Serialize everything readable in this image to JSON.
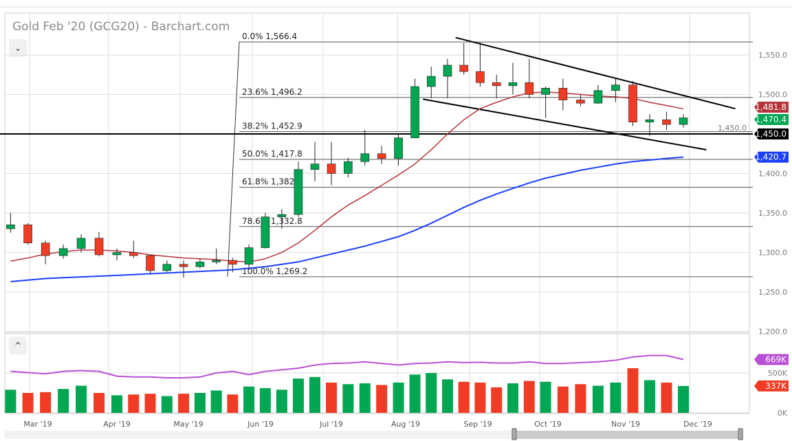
{
  "title": "Gold Feb '20 (GCG20) - Barchart.com",
  "controls": {
    "collapse_price": "⌄",
    "collapse_volume": "^"
  },
  "chart_data": [
    {
      "type": "candlestick",
      "interval": "weekly (approx.)",
      "yticks": [
        1550,
        1500,
        1450,
        1400,
        1350,
        1300,
        1250,
        1200
      ],
      "ytick_labels": [
        "1,550.0",
        "1,500.0",
        "1,450.0",
        "1,400.0",
        "1,350.0",
        "1,300.0",
        "1,250.0",
        "1,200.0"
      ],
      "ylim": [
        1200,
        1580
      ],
      "xtick_labels": [
        "Mar '19",
        "Apr '19",
        "May '19",
        "Jun '19",
        "Jul '19",
        "Aug '19",
        "Sep '19",
        "Oct '19",
        "Nov '19",
        "Dec '19"
      ],
      "xtick_dates": [
        "2019-03-01",
        "2019-04-01",
        "2019-05-01",
        "2019-06-01",
        "2019-07-01",
        "2019-08-01",
        "2019-09-01",
        "2019-10-01",
        "2019-11-01",
        "2019-12-01"
      ],
      "candles": [
        [
          "2019-02-18",
          1330,
          1350,
          1325,
          1335
        ],
        [
          "2019-02-25",
          1335,
          1337,
          1310,
          1312
        ],
        [
          "2019-03-04",
          1312,
          1315,
          1285,
          1296
        ],
        [
          "2019-03-11",
          1296,
          1310,
          1292,
          1305
        ],
        [
          "2019-03-18",
          1305,
          1323,
          1300,
          1318
        ],
        [
          "2019-03-25",
          1318,
          1326,
          1295,
          1297
        ],
        [
          "2019-04-01",
          1297,
          1305,
          1290,
          1300
        ],
        [
          "2019-04-08",
          1300,
          1315,
          1293,
          1296
        ],
        [
          "2019-04-15",
          1296,
          1297,
          1273,
          1277
        ],
        [
          "2019-04-22",
          1277,
          1290,
          1275,
          1285
        ],
        [
          "2019-04-29",
          1285,
          1290,
          1268,
          1282
        ],
        [
          "2019-05-06",
          1282,
          1292,
          1280,
          1288
        ],
        [
          "2019-05-13",
          1288,
          1305,
          1285,
          1290
        ],
        [
          "2019-05-20",
          1290,
          1293,
          1275,
          1285
        ],
        [
          "2019-05-27",
          1285,
          1310,
          1278,
          1306
        ],
        [
          "2019-06-03",
          1306,
          1350,
          1305,
          1345
        ],
        [
          "2019-06-10",
          1345,
          1355,
          1330,
          1348
        ],
        [
          "2019-06-17",
          1348,
          1415,
          1345,
          1405
        ],
        [
          "2019-06-24",
          1405,
          1440,
          1390,
          1412
        ],
        [
          "2019-07-01",
          1412,
          1440,
          1385,
          1400
        ],
        [
          "2019-07-08",
          1400,
          1420,
          1395,
          1415
        ],
        [
          "2019-07-15",
          1415,
          1455,
          1410,
          1425
        ],
        [
          "2019-07-22",
          1425,
          1435,
          1412,
          1419
        ],
        [
          "2019-07-29",
          1419,
          1450,
          1410,
          1445
        ],
        [
          "2019-08-05",
          1445,
          1520,
          1445,
          1510
        ],
        [
          "2019-08-12",
          1510,
          1535,
          1495,
          1523
        ],
        [
          "2019-08-19",
          1523,
          1545,
          1495,
          1537
        ],
        [
          "2019-08-26",
          1537,
          1565,
          1525,
          1529
        ],
        [
          "2019-09-02",
          1529,
          1566,
          1510,
          1515
        ],
        [
          "2019-09-09",
          1515,
          1525,
          1495,
          1511
        ],
        [
          "2019-09-16",
          1511,
          1540,
          1500,
          1515
        ],
        [
          "2019-09-23",
          1515,
          1545,
          1495,
          1500
        ],
        [
          "2019-09-30",
          1500,
          1510,
          1470,
          1508
        ],
        [
          "2019-10-07",
          1508,
          1520,
          1480,
          1493
        ],
        [
          "2019-10-14",
          1493,
          1500,
          1485,
          1489
        ],
        [
          "2019-10-21",
          1489,
          1512,
          1488,
          1505
        ],
        [
          "2019-10-28",
          1505,
          1520,
          1490,
          1512
        ],
        [
          "2019-11-04",
          1512,
          1517,
          1460,
          1465
        ],
        [
          "2019-11-11",
          1465,
          1475,
          1447,
          1468
        ],
        [
          "2019-11-18",
          1468,
          1478,
          1455,
          1462
        ],
        [
          "2019-11-25",
          1462,
          1475,
          1458,
          1470.4
        ]
      ],
      "ma_50": [
        1289,
        1293,
        1298,
        1301,
        1303,
        1303,
        1302,
        1300,
        1297,
        1295,
        1293,
        1292,
        1291,
        1289,
        1288,
        1292,
        1300,
        1312,
        1328,
        1345,
        1360,
        1372,
        1385,
        1398,
        1412,
        1430,
        1450,
        1468,
        1482,
        1490,
        1497,
        1502,
        1503,
        1502,
        1500,
        1498,
        1497,
        1495,
        1490,
        1486,
        1481.8
      ],
      "ma_200": [
        1263,
        1265,
        1267,
        1268,
        1269,
        1270,
        1271,
        1272,
        1273,
        1274,
        1275,
        1276,
        1277,
        1278,
        1280,
        1282,
        1285,
        1288,
        1293,
        1298,
        1303,
        1308,
        1314,
        1320,
        1328,
        1337,
        1347,
        1357,
        1366,
        1374,
        1381,
        1388,
        1394,
        1399,
        1404,
        1408,
        1412,
        1415,
        1417,
        1419,
        1420.7
      ],
      "fibonacci": [
        {
          "label": "0.0% 1,566.4",
          "value": 1566.4
        },
        {
          "label": "23.6% 1,496.2",
          "value": 1496.2
        },
        {
          "label": "38.2% 1,452.9",
          "value": 1452.9
        },
        {
          "label": "50.0% 1,417.8",
          "value": 1417.8
        },
        {
          "label": "61.8% 1,382",
          "value": 1382.5
        },
        {
          "label": "78.6% 1,332.8",
          "value": 1332.8
        },
        {
          "label": "100.0% 1,269.2",
          "value": 1269.2
        }
      ],
      "horizontal_line": {
        "value": 1450,
        "label": "1,450.0"
      },
      "trendlines": [
        {
          "from": [
            "2019-08-26",
            1572
          ],
          "to": [
            "2019-12-20",
            1482
          ]
        },
        {
          "from": [
            "2019-08-12",
            1494
          ],
          "to": [
            "2019-12-08",
            1430
          ]
        }
      ],
      "badges": [
        {
          "label": "1,481.8",
          "value": 1481.8,
          "color": "#b5343b"
        },
        {
          "label": "1,470.4",
          "value": 1470.4,
          "color": "#00a651"
        },
        {
          "label": "1,450.0",
          "value": 1450,
          "color": "#000000"
        },
        {
          "label": "1,420.7",
          "value": 1420.7,
          "color": "#1a3fff"
        }
      ]
    },
    {
      "type": "bar",
      "name": "volume",
      "yticks": [
        0,
        500
      ],
      "ytick_labels": [
        "0K",
        "500K"
      ],
      "ylim": [
        0,
        800
      ],
      "values_k": [
        290,
        250,
        260,
        300,
        340,
        250,
        220,
        230,
        240,
        210,
        240,
        250,
        280,
        230,
        330,
        310,
        290,
        430,
        450,
        380,
        360,
        370,
        350,
        380,
        480,
        500,
        420,
        390,
        380,
        320,
        370,
        400,
        390,
        330,
        360,
        340,
        380,
        560,
        410,
        380,
        337
      ],
      "up": [
        1,
        0,
        0,
        1,
        1,
        0,
        1,
        0,
        0,
        1,
        0,
        1,
        1,
        0,
        1,
        1,
        1,
        1,
        1,
        0,
        1,
        1,
        0,
        1,
        1,
        1,
        1,
        0,
        0,
        0,
        1,
        0,
        1,
        0,
        0,
        1,
        1,
        0,
        1,
        0,
        1
      ],
      "ma_k": [
        520,
        505,
        490,
        520,
        530,
        520,
        460,
        450,
        450,
        440,
        440,
        450,
        500,
        520,
        480,
        520,
        540,
        560,
        600,
        620,
        625,
        640,
        620,
        600,
        620,
        625,
        640,
        630,
        635,
        625,
        625,
        640,
        620,
        620,
        630,
        640,
        660,
        700,
        720,
        720,
        669
      ],
      "badges": [
        {
          "label": "669K",
          "value": 669,
          "color": "#b84fd4"
        },
        {
          "label": "337K",
          "value": 337,
          "color": "#f03c24"
        }
      ]
    }
  ],
  "colors": {
    "up": "#00a651",
    "down": "#f03c24",
    "ma50": "#b5343b",
    "ma200": "#1a3fff",
    "volume_ma": "#b84fd4"
  }
}
